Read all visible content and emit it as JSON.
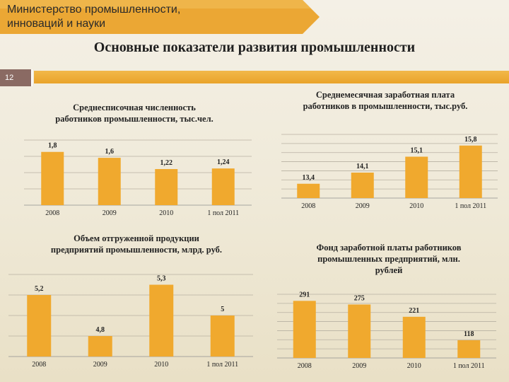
{
  "header": {
    "ministry_lines": [
      "Министерство промышленности,",
      "инноваций и науки"
    ],
    "page_title": "Основные показатели развития промышленности",
    "slide_number": "12"
  },
  "colors": {
    "accent": "#e9a32a",
    "bar": "#f0a92e",
    "banner": "#eba734",
    "slide_number_bg": "#8a6a63"
  },
  "chart_data": [
    {
      "type": "bar",
      "title_lines": [
        "Среднесписочная численность",
        "работников промышленности, тыс.чел."
      ],
      "categories": [
        "2008",
        "2009",
        "2010",
        "1 пол 2011"
      ],
      "values": [
        1.8,
        1.6,
        1.22,
        1.24
      ],
      "value_labels": [
        "1,8",
        "1,6",
        "1,22",
        "1,24"
      ],
      "ylim": [
        0,
        2.2
      ],
      "grid": true
    },
    {
      "type": "bar",
      "title_lines": [
        "Среднемесячная заработная плата",
        "работников в промышленности, тыс.руб."
      ],
      "categories": [
        "2008",
        "2009",
        "2010",
        "1 пол 2011"
      ],
      "values": [
        13.4,
        14.1,
        15.1,
        15.8
      ],
      "value_labels": [
        "13,4",
        "14,1",
        "15,1",
        "15,8"
      ],
      "ylim": [
        12.5,
        16.5
      ],
      "grid": true
    },
    {
      "type": "bar",
      "title_lines": [
        "Объем отгруженной продукции",
        "предприятий промышленности, млрд. руб."
      ],
      "categories": [
        "2008",
        "2009",
        "2010",
        "1 пол 2011"
      ],
      "values": [
        5.2,
        4.8,
        5.3,
        5.0
      ],
      "value_labels": [
        "5,2",
        "4,8",
        "5,3",
        "5"
      ],
      "ylim": [
        4.6,
        5.4
      ],
      "grid": true
    },
    {
      "type": "bar",
      "title_lines": [
        "Фонд заработной платы работников",
        "промышленных предприятий, млн.",
        "рублей"
      ],
      "categories": [
        "2008",
        "2009",
        "2010",
        "1 пол 2011"
      ],
      "values": [
        291,
        275,
        221,
        118
      ],
      "value_labels": [
        "291",
        "275",
        "221",
        "118"
      ],
      "ylim": [
        40,
        320
      ],
      "grid": true
    }
  ]
}
